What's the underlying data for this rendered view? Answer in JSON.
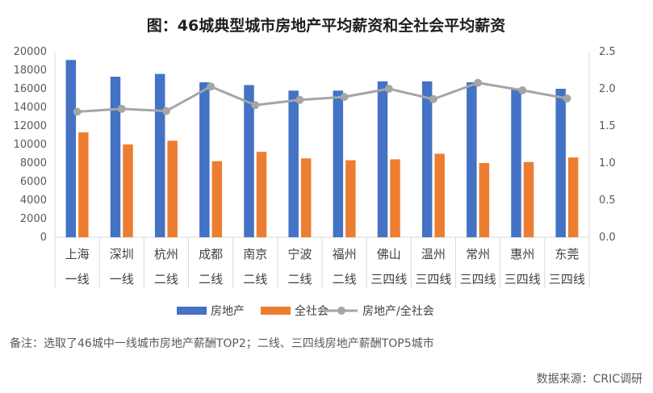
{
  "chart_data": {
    "type": "bar",
    "title": "图：46城典型城市房地产平均薪资和全社会平均薪资",
    "categories": [
      "上海",
      "深圳",
      "杭州",
      "成都",
      "南京",
      "宁波",
      "福州",
      "佛山",
      "温州",
      "常州",
      "惠州",
      "东莞"
    ],
    "tiers": [
      "一线",
      "一线",
      "二线",
      "二线",
      "二线",
      "二线",
      "二线",
      "三四线",
      "三四线",
      "三四线",
      "三四线",
      "三四线"
    ],
    "ylim": [
      0,
      20000
    ],
    "y_ticks": [
      "0",
      "2000",
      "4000",
      "6000",
      "8000",
      "10000",
      "12000",
      "14000",
      "16000",
      "18000",
      "20000"
    ],
    "y2lim": [
      0,
      2.5
    ],
    "y2_ticks": [
      "0.0",
      "0.5",
      "1.0",
      "1.5",
      "2.0",
      "2.5"
    ],
    "grid": false,
    "legend_position": "bottom",
    "series": [
      {
        "name": "房地产",
        "axis": "left",
        "kind": "bar",
        "color": "#4472C4",
        "values": [
          19100,
          17300,
          17600,
          16700,
          16400,
          15800,
          15800,
          16800,
          16800,
          16700,
          16000,
          16000
        ]
      },
      {
        "name": "全社会",
        "axis": "left",
        "kind": "bar",
        "color": "#ED7D31",
        "values": [
          11300,
          10000,
          10400,
          8200,
          9200,
          8500,
          8300,
          8400,
          9000,
          8000,
          8100,
          8600
        ]
      },
      {
        "name": "房地产/全社会",
        "axis": "right",
        "kind": "line",
        "color": "#A5A5A5",
        "values": [
          1.69,
          1.73,
          1.7,
          2.03,
          1.78,
          1.85,
          1.89,
          2.0,
          1.86,
          2.08,
          1.98,
          1.87
        ]
      }
    ]
  },
  "footnote": "备注：选取了46城中一线城市房地产薪酬TOP2；二线、三四线房地产薪酬TOP5城市",
  "source": "数据来源：CRIC调研"
}
